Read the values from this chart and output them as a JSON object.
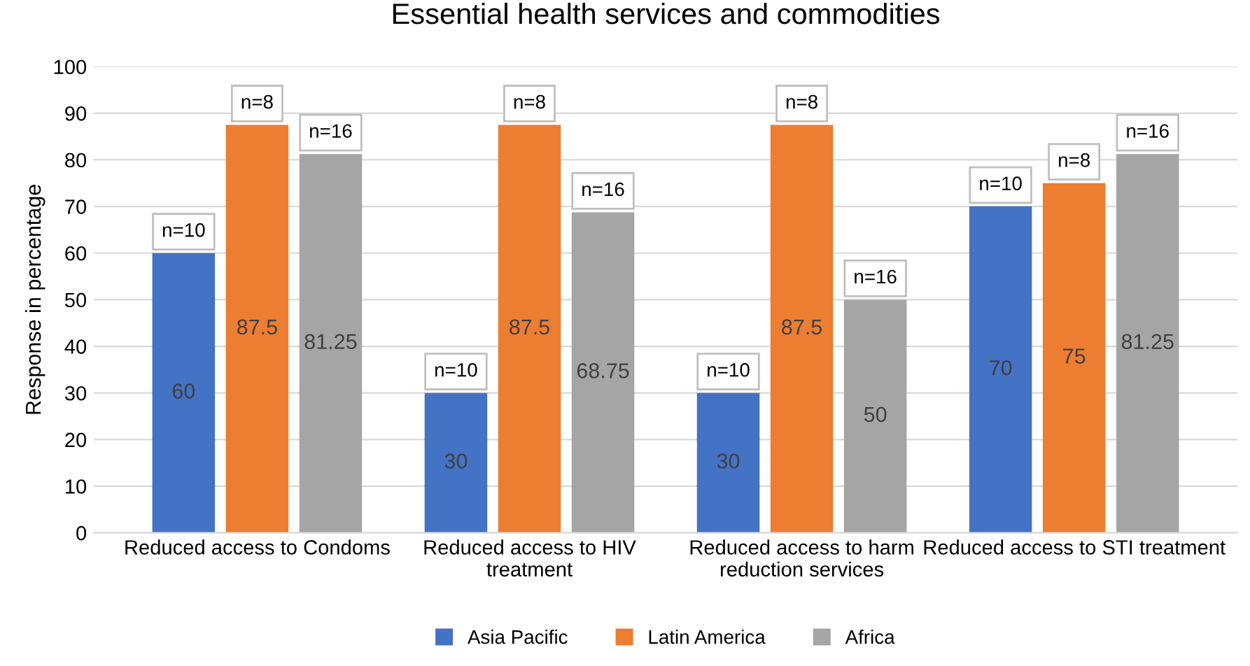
{
  "chart_data": {
    "type": "bar",
    "title": "Essential health services and commodities",
    "ylabel": "Response in percentage",
    "categories": [
      "Reduced access to Condoms",
      "Reduced access to HIV\ntreatment",
      "Reduced access to harm\nreduction services",
      "Reduced access to STI treatment"
    ],
    "series": [
      {
        "name": "Asia Pacific",
        "color": "#4472c4",
        "values": [
          60,
          30,
          30,
          70
        ]
      },
      {
        "name": "Latin America",
        "color": "#ed7d31",
        "values": [
          87.5,
          87.5,
          87.5,
          75
        ]
      },
      {
        "name": "Africa",
        "color": "#a5a5a5",
        "values": [
          81.25,
          68.75,
          50,
          81.25
        ]
      }
    ],
    "annotations": [
      "n=10",
      "n=8",
      "n=16",
      "n=10",
      "n=8",
      "n=16",
      "n=10",
      "n=8",
      "n=16",
      "n=10",
      "n=8",
      "n=16"
    ],
    "ylim": [
      0,
      100
    ],
    "yticks": [
      0,
      10,
      20,
      30,
      40,
      50,
      60,
      70,
      80,
      90,
      100
    ],
    "grid": "y",
    "legend": "bottom",
    "data_labels": true
  }
}
